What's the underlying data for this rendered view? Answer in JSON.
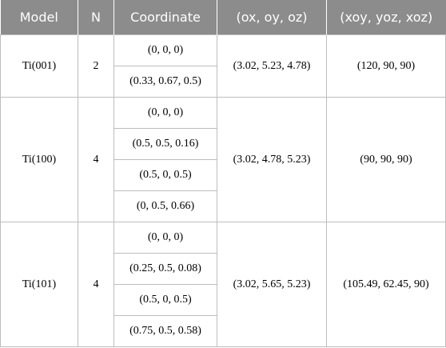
{
  "headers": [
    "Model",
    "N",
    "Coordinate",
    "(ox, oy, oz)",
    "(xoy, yoz, xoz)"
  ],
  "groups": [
    {
      "model": "Ti(001)",
      "n": "2",
      "coords": [
        "(0, 0, 0)",
        "(0.33, 0.67, 0.5)"
      ],
      "lattice": "(3.02, 5.23, 4.78)",
      "angles": "(120, 90, 90)"
    },
    {
      "model": "Ti(100)",
      "n": "4",
      "coords": [
        "(0, 0, 0)",
        "(0.5, 0.5, 0.16)",
        "(0.5, 0, 0.5)",
        "(0, 0.5, 0.66)"
      ],
      "lattice": "(3.02, 4.78, 5.23)",
      "angles": "(90, 90, 90)"
    },
    {
      "model": "Ti(101)",
      "n": "4",
      "coords": [
        "(0, 0, 0)",
        "(0.25, 0.5, 0.08)",
        "(0.5, 0, 0.5)",
        "(0.75, 0.5, 0.58)"
      ],
      "lattice": "(3.02, 5.65, 5.23)",
      "angles": "(105.49, 62.45, 90)"
    }
  ]
}
